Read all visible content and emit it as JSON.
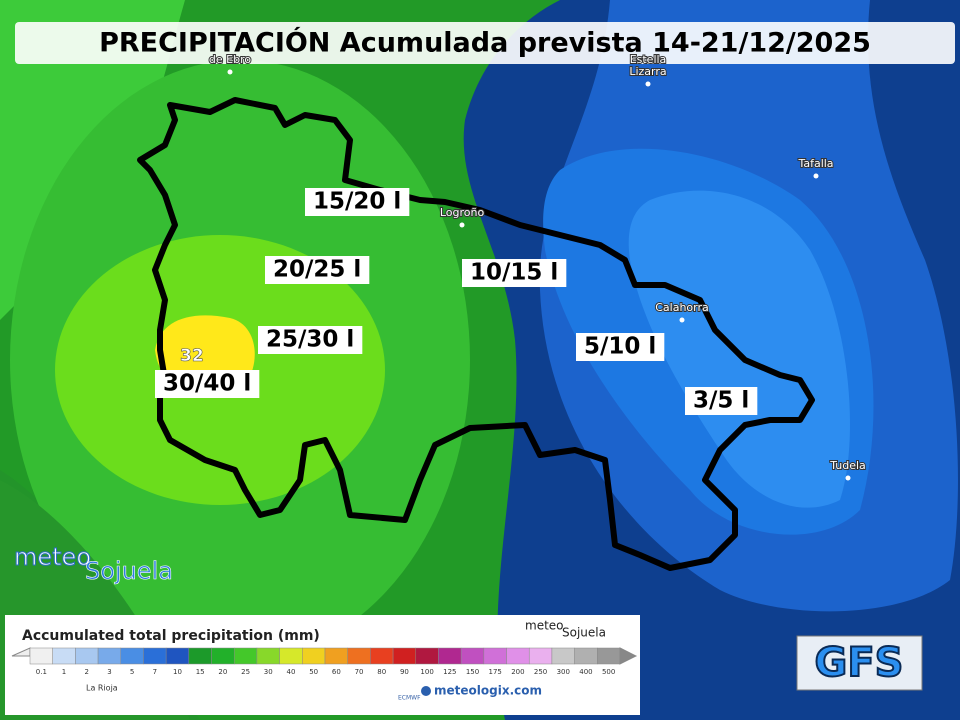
{
  "title": "PRECIPITACIÓN Acumulada prevista 14-21/12/2025",
  "places": [
    {
      "label": "de Ebro"
    },
    {
      "label": "Estella"
    },
    {
      "label": "Lizarra"
    },
    {
      "label": "Tafalla"
    },
    {
      "label": "Logroño"
    },
    {
      "label": "Calahorra"
    },
    {
      "label": "Tudela"
    }
  ],
  "zones": [
    {
      "label": "15/20 l"
    },
    {
      "label": "20/25 l"
    },
    {
      "label": "10/15 l"
    },
    {
      "label": "25/30 l"
    },
    {
      "label": "5/10 l"
    },
    {
      "label": "30/40 l"
    },
    {
      "label": "3/5 l"
    }
  ],
  "max_value": "32",
  "logo": {
    "part1": "meteo",
    "part2": "Sojuela"
  },
  "legend": {
    "title": "Accumulated total precipitation (mm)",
    "scale": [
      "0.1",
      "1",
      "2",
      "3",
      "5",
      "7",
      "10",
      "15",
      "20",
      "25",
      "30",
      "40",
      "50",
      "60",
      "70",
      "80",
      "90",
      "100",
      "125",
      "150",
      "175",
      "200",
      "250",
      "300",
      "400",
      "500"
    ],
    "region": "La Rioja",
    "source": "ECMWF",
    "site": "meteologix.com",
    "logo_part1": "meteo",
    "logo_part2": "Sojuela"
  },
  "model": "GFS"
}
